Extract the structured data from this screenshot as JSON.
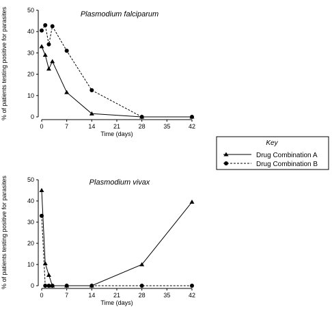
{
  "chart_data": [
    {
      "type": "line",
      "title": "Plasmodium falciparum",
      "xlabel": "Time (days)",
      "ylabel": "% of patients testing positive for parasites",
      "xlim": [
        0,
        42
      ],
      "ylim": [
        0,
        50
      ],
      "xticks": [
        0,
        7,
        14,
        21,
        28,
        35,
        42
      ],
      "yticks": [
        0,
        10,
        20,
        30,
        40,
        50
      ],
      "series": [
        {
          "name": "Drug Combination A",
          "marker": "triangle",
          "style": "solid",
          "x": [
            0,
            1,
            2,
            3,
            7,
            14,
            28,
            42
          ],
          "y": [
            33,
            29,
            22.5,
            26,
            11.5,
            1.5,
            0,
            0
          ]
        },
        {
          "name": "Drug Combination B",
          "marker": "circle",
          "style": "dashed",
          "x": [
            0,
            1,
            2,
            3,
            7,
            14,
            28,
            42
          ],
          "y": [
            40.5,
            43,
            34,
            42.5,
            31,
            12.5,
            0,
            0
          ]
        }
      ]
    },
    {
      "type": "line",
      "title": "Plasmodium vivax",
      "xlabel": "Time (days)",
      "ylabel": "% of patients testing positive for parasites",
      "xlim": [
        0,
        42
      ],
      "ylim": [
        0,
        50
      ],
      "xticks": [
        0,
        7,
        14,
        21,
        28,
        35,
        42
      ],
      "yticks": [
        0,
        10,
        20,
        30,
        40,
        50
      ],
      "series": [
        {
          "name": "Drug Combination A",
          "marker": "triangle",
          "style": "solid",
          "x": [
            0,
            1,
            2,
            3,
            7,
            14,
            28,
            42
          ],
          "y": [
            45,
            10.5,
            5,
            0,
            0,
            0,
            10,
            39.5
          ]
        },
        {
          "name": "Drug Combination B",
          "marker": "circle",
          "style": "dashed",
          "x": [
            0,
            1,
            2,
            3,
            7,
            14,
            28,
            42
          ],
          "y": [
            33,
            0,
            0,
            0,
            0,
            0,
            0,
            0
          ]
        }
      ]
    }
  ],
  "legend": {
    "title": "Key",
    "items": [
      "Drug Combination A",
      "Drug Combination B"
    ]
  },
  "colors": {
    "series_a": "#000000",
    "series_b": "#000000"
  }
}
